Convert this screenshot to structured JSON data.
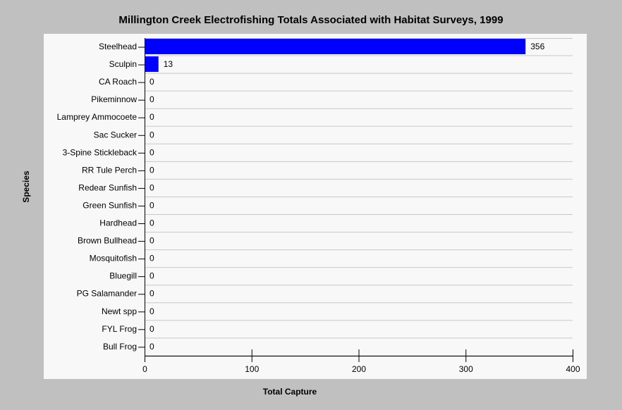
{
  "chart_data": {
    "type": "bar",
    "orientation": "horizontal",
    "title": "Millington Creek Electrofishing Totals Associated with Habitat Surveys, 1999",
    "xlabel": "Total Capture",
    "ylabel": "Species",
    "categories": [
      "Steelhead",
      "Sculpin",
      "CA Roach",
      "Pikeminnow",
      "Lamprey Ammocoete",
      "Sac Sucker",
      "3-Spine Stickleback",
      "RR Tule Perch",
      "Redear Sunfish",
      "Green Sunfish",
      "Hardhead",
      "Brown Bullhead",
      "Mosquitofish",
      "Bluegill",
      "PG Salamander",
      "Newt spp",
      "FYL Frog",
      "Bull Frog"
    ],
    "values": [
      356,
      13,
      0,
      0,
      0,
      0,
      0,
      0,
      0,
      0,
      0,
      0,
      0,
      0,
      0,
      0,
      0,
      0
    ],
    "xlim": [
      0,
      400
    ],
    "xticks": [
      0,
      100,
      200,
      300,
      400
    ],
    "grid": true,
    "bar_color": "#0000ff",
    "legend": false
  }
}
